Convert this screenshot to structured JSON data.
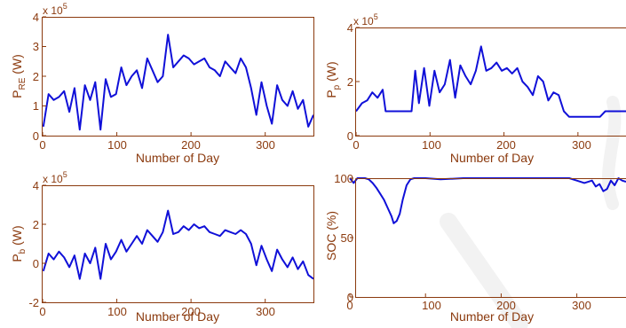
{
  "colors": {
    "axis": "#8b3a0e",
    "series": "#1010d8",
    "background": "#ffffff",
    "watermark": "#e6e6e6"
  },
  "chart_data": [
    {
      "type": "line",
      "xlabel": "Number of Day",
      "ylabel": "P_RE (W)",
      "ylabel_main": "P",
      "ylabel_sub": "RE",
      "ylabel_tail": " (W)",
      "y_multiplier": "x 10",
      "y_exponent": "5",
      "xlim": [
        0,
        365
      ],
      "ylim": [
        0,
        400000
      ],
      "xticks": [
        0,
        100,
        200,
        300
      ],
      "yticks": [
        0,
        100000,
        200000,
        300000,
        400000
      ],
      "ytick_labels": [
        "0",
        "1",
        "2",
        "3",
        "4"
      ],
      "grid": false,
      "x": [
        1,
        8,
        15,
        22,
        29,
        36,
        43,
        50,
        57,
        64,
        71,
        78,
        85,
        92,
        99,
        106,
        113,
        120,
        127,
        134,
        141,
        148,
        155,
        162,
        169,
        176,
        183,
        190,
        197,
        204,
        211,
        218,
        225,
        232,
        239,
        246,
        253,
        260,
        267,
        274,
        281,
        288,
        295,
        302,
        309,
        316,
        323,
        330,
        337,
        344,
        351,
        358,
        365
      ],
      "y": [
        30000,
        140000,
        120000,
        130000,
        150000,
        80000,
        160000,
        20000,
        170000,
        120000,
        180000,
        20000,
        190000,
        130000,
        140000,
        230000,
        170000,
        200000,
        220000,
        160000,
        260000,
        220000,
        180000,
        200000,
        340000,
        230000,
        250000,
        270000,
        260000,
        240000,
        250000,
        260000,
        230000,
        220000,
        200000,
        250000,
        230000,
        210000,
        260000,
        230000,
        160000,
        70000,
        180000,
        100000,
        40000,
        170000,
        120000,
        100000,
        150000,
        90000,
        120000,
        30000,
        70000
      ]
    },
    {
      "type": "line",
      "xlabel": "Number of Day",
      "ylabel": "P_p (W)",
      "ylabel_main": "P",
      "ylabel_sub": "p",
      "ylabel_tail": " (W)",
      "y_multiplier": "x 10",
      "y_exponent": "5",
      "xlim": [
        0,
        365
      ],
      "ylim": [
        0,
        400000
      ],
      "xticks": [
        0,
        100,
        200,
        300
      ],
      "yticks": [
        0,
        200000,
        400000
      ],
      "ytick_labels": [
        "0",
        "2",
        "4"
      ],
      "grid": false,
      "x": [
        0,
        8,
        15,
        22,
        29,
        36,
        40,
        50,
        60,
        70,
        75,
        80,
        85,
        92,
        99,
        106,
        113,
        120,
        127,
        134,
        141,
        148,
        155,
        162,
        169,
        176,
        183,
        190,
        197,
        204,
        211,
        218,
        225,
        232,
        239,
        246,
        253,
        260,
        267,
        274,
        281,
        288,
        295,
        302,
        309,
        316,
        323,
        330,
        337,
        344,
        351,
        358,
        365
      ],
      "y": [
        90000,
        120000,
        130000,
        160000,
        140000,
        170000,
        90000,
        90000,
        90000,
        90000,
        90000,
        240000,
        120000,
        250000,
        110000,
        240000,
        160000,
        190000,
        280000,
        140000,
        260000,
        220000,
        190000,
        240000,
        330000,
        240000,
        250000,
        270000,
        240000,
        250000,
        230000,
        250000,
        200000,
        180000,
        150000,
        220000,
        200000,
        130000,
        160000,
        150000,
        90000,
        70000,
        70000,
        70000,
        70000,
        70000,
        70000,
        70000,
        90000,
        90000,
        90000,
        90000,
        90000
      ]
    },
    {
      "type": "line",
      "xlabel": "Number of Day",
      "ylabel": "P_b (W)",
      "ylabel_main": "P",
      "ylabel_sub": "b",
      "ylabel_tail": " (W)",
      "y_multiplier": "x 10",
      "y_exponent": "5",
      "xlim": [
        0,
        365
      ],
      "ylim": [
        -200000,
        400000
      ],
      "xticks": [
        0,
        100,
        200,
        300
      ],
      "yticks": [
        -200000,
        0,
        200000,
        400000
      ],
      "ytick_labels": [
        "-2",
        "0",
        "2",
        "4"
      ],
      "grid": false,
      "x": [
        1,
        8,
        15,
        22,
        29,
        36,
        43,
        50,
        57,
        64,
        71,
        78,
        85,
        92,
        99,
        106,
        113,
        120,
        127,
        134,
        141,
        148,
        155,
        162,
        169,
        176,
        183,
        190,
        197,
        204,
        211,
        218,
        225,
        232,
        239,
        246,
        253,
        260,
        267,
        274,
        281,
        288,
        295,
        302,
        309,
        316,
        323,
        330,
        337,
        344,
        351,
        358,
        365
      ],
      "y": [
        -40000,
        50000,
        20000,
        60000,
        30000,
        -20000,
        40000,
        -80000,
        50000,
        0,
        80000,
        -80000,
        100000,
        20000,
        60000,
        120000,
        60000,
        100000,
        140000,
        100000,
        170000,
        140000,
        110000,
        160000,
        270000,
        150000,
        160000,
        190000,
        170000,
        200000,
        180000,
        190000,
        160000,
        150000,
        140000,
        170000,
        160000,
        150000,
        170000,
        150000,
        100000,
        -10000,
        90000,
        20000,
        -40000,
        70000,
        20000,
        -20000,
        30000,
        -30000,
        10000,
        -60000,
        -80000
      ]
    },
    {
      "type": "line",
      "xlabel": "Number of Day",
      "ylabel": "SOC (%)",
      "xlim": [
        0,
        365
      ],
      "ylim": [
        0,
        100
      ],
      "xticks": [
        0,
        100,
        200,
        300
      ],
      "yticks": [
        0,
        50,
        100
      ],
      "ytick_labels": [
        "0",
        "50",
        "100"
      ],
      "grid": false,
      "x": [
        0,
        5,
        10,
        20,
        25,
        30,
        35,
        40,
        45,
        50,
        55,
        58,
        62,
        66,
        70,
        75,
        80,
        85,
        90,
        100,
        120,
        150,
        180,
        210,
        240,
        270,
        290,
        300,
        310,
        320,
        325,
        330,
        335,
        340,
        345,
        350,
        355,
        360,
        365
      ],
      "y": [
        100,
        96,
        100,
        100,
        99,
        96,
        92,
        87,
        82,
        75,
        68,
        62,
        64,
        70,
        82,
        94,
        99,
        100,
        100,
        100,
        99,
        100,
        100,
        100,
        100,
        100,
        100,
        98,
        96,
        98,
        93,
        95,
        89,
        91,
        98,
        94,
        100,
        98,
        97
      ]
    }
  ]
}
